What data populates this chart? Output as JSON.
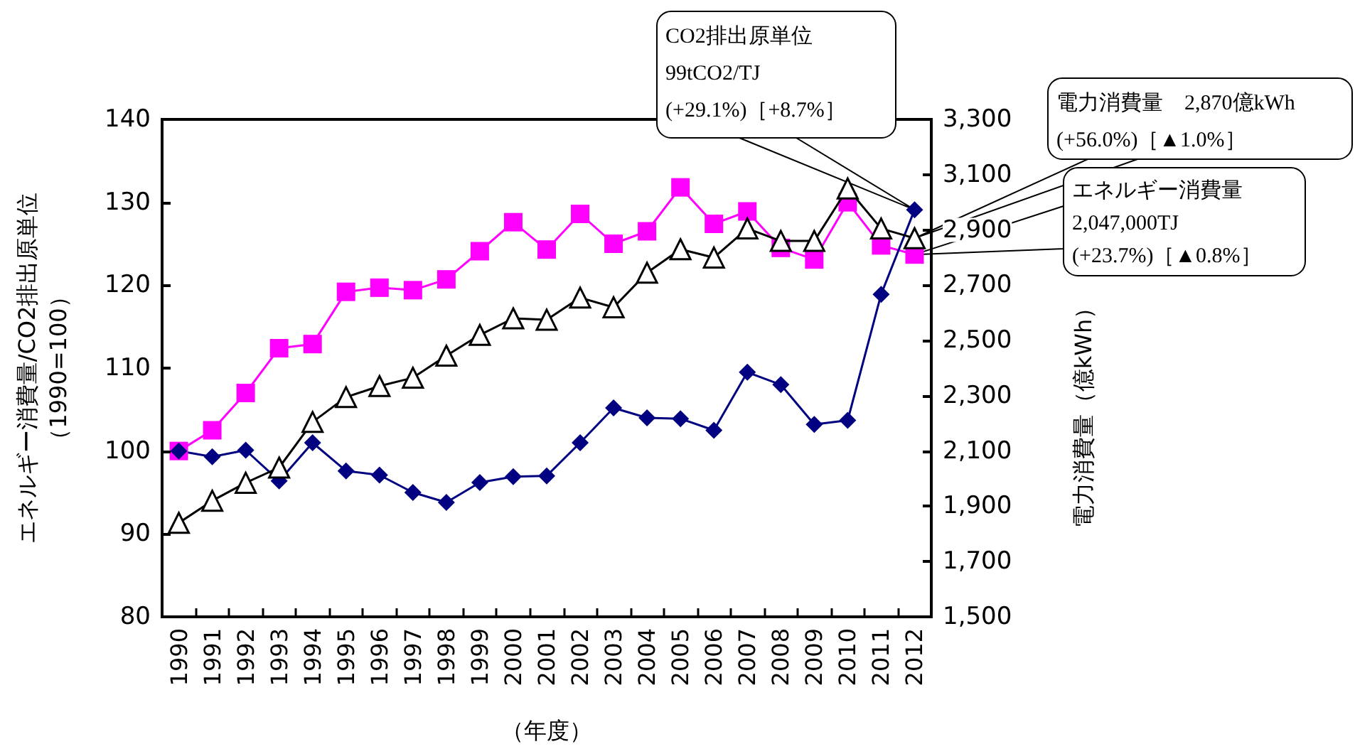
{
  "chart_data": {
    "type": "line",
    "xlabel": "（年度）",
    "ylabel": "エネルギー消費量/CO2排出原単位（1990=100）",
    "y2label": "電力消費量（億kWh）",
    "categories": [
      "1990",
      "1991",
      "1992",
      "1993",
      "1994",
      "1995",
      "1996",
      "1997",
      "1998",
      "1999",
      "2000",
      "2001",
      "2002",
      "2003",
      "2004",
      "2005",
      "2006",
      "2007",
      "2008",
      "2009",
      "2010",
      "2011",
      "2012"
    ],
    "ylim": [
      80,
      140
    ],
    "yticks": [
      80,
      90,
      100,
      110,
      120,
      130,
      140
    ],
    "y2lim": [
      1500,
      3300
    ],
    "y2ticks": [
      {
        "value": 1500,
        "label": "1,500"
      },
      {
        "value": 1700,
        "label": "1,700"
      },
      {
        "value": 1900,
        "label": "1,900"
      },
      {
        "value": 2100,
        "label": "2,100"
      },
      {
        "value": 2300,
        "label": "2,300"
      },
      {
        "value": 2500,
        "label": "2,500"
      },
      {
        "value": 2700,
        "label": "2,700"
      },
      {
        "value": 2900,
        "label": "2,900"
      },
      {
        "value": 3100,
        "label": "3,100"
      },
      {
        "value": 3300,
        "label": "3,300"
      }
    ],
    "grid": false,
    "line_style": "solid",
    "series": [
      {
        "color": "#ff00ff",
        "marker": "square",
        "values": [
          100,
          102.5,
          107,
          112.4,
          112.9,
          119.2,
          119.7,
          119.4,
          120.7,
          124.1,
          127.6,
          124.3,
          128.6,
          125,
          126.5,
          131.8,
          127.4,
          128.9,
          124.5,
          123.1,
          130,
          124.8,
          123.7
        ]
      },
      {
        "color": "#000000",
        "marker": "triangle",
        "axis": "y2",
        "values": [
          1840,
          1920,
          1985,
          2040,
          2205,
          2295,
          2335,
          2365,
          2445,
          2520,
          2580,
          2575,
          2655,
          2620,
          2745,
          2830,
          2800,
          2905,
          2860,
          2860,
          3050,
          2905,
          2870
        ]
      },
      {
        "color": "#000080",
        "marker": "diamond",
        "values": [
          100,
          99.3,
          100.1,
          96.4,
          101,
          97.6,
          97.1,
          95,
          93.8,
          96.2,
          96.9,
          97,
          101,
          105.2,
          104,
          103.9,
          102.5,
          109.5,
          108,
          103.2,
          103.7,
          118.9,
          129.1
        ]
      }
    ],
    "annotations": [
      {
        "text": "CO2排出原単位\n99tCO2/TJ\n(+29.1%)［+8.7%］",
        "x": "2012",
        "y": 129.1
      },
      "電力消費量　2,870億kWh\n(+56.0%)［▲1.0%］",
      {
        "text": "エネルギー消費量\n2,047,000TJ\n(+23.7%)［▲0.8%］",
        "x": "2012",
        "y": 123.7
      }
    ]
  }
}
